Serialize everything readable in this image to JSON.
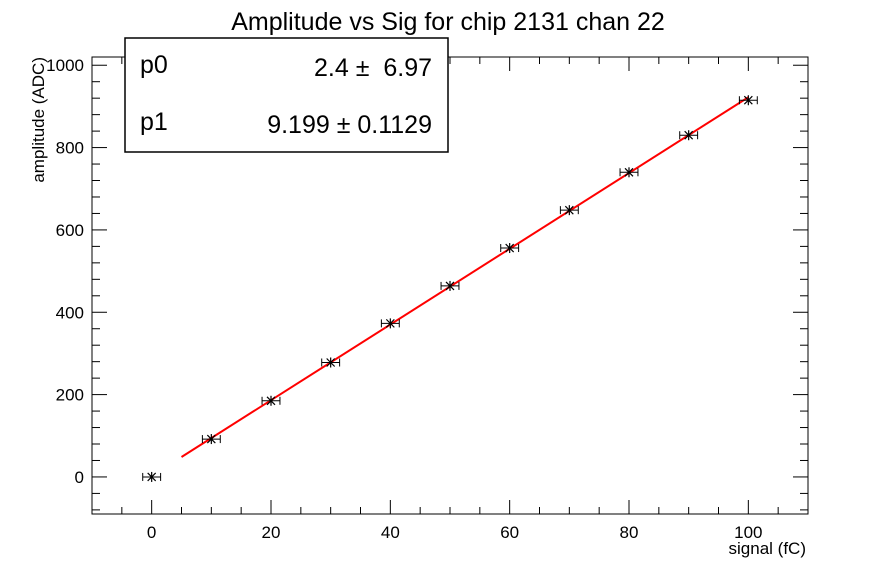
{
  "chart_data": {
    "type": "scatter",
    "title": "Amplitude vs Sig for chip 2131 chan 22",
    "xlabel": "signal (fC)",
    "ylabel": "amplitude (ADC)",
    "xlim": [
      -10,
      110
    ],
    "ylim": [
      -90,
      1020
    ],
    "x_ticks": [
      0,
      20,
      40,
      60,
      80,
      100
    ],
    "y_ticks": [
      0,
      200,
      400,
      600,
      800,
      1000
    ],
    "grid": false,
    "points": {
      "x": [
        0,
        10,
        20,
        30,
        40,
        50,
        60,
        70,
        80,
        90,
        100
      ],
      "y": [
        0,
        92,
        185,
        278,
        373,
        464,
        556,
        648,
        740,
        830,
        915
      ],
      "x_err": 1.5,
      "marker_color": "#000000"
    },
    "fit": {
      "p0": 2.4,
      "p1": 9.199,
      "x_range": [
        5,
        100
      ],
      "color": "#ff0000"
    },
    "stats_box": {
      "rows": [
        {
          "name": "p0",
          "value": "2.4 ±  6.97"
        },
        {
          "name": "p1",
          "value": "9.199 ± 0.1129"
        }
      ]
    }
  }
}
